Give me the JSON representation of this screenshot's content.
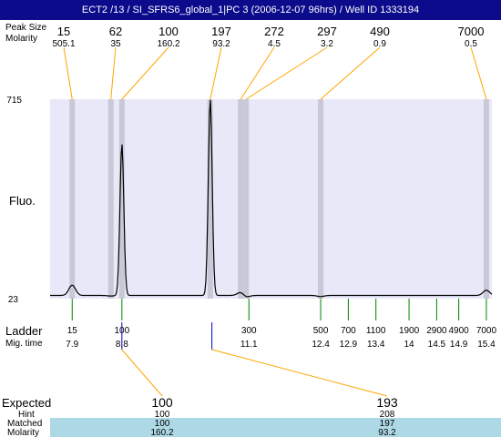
{
  "title": "ECT2 /13 / SI_SFRS6_global_1|PC 3 (2006-12-07 96hrs) / Well ID 1333194",
  "row_labels": {
    "peak_size": "Peak Size",
    "molarity": "Molarity",
    "fluo": "Fluo.",
    "ladder": "Ladder",
    "mig_time": "Mig. time",
    "expected": "Expected",
    "hint": "Hint",
    "matched": "Matched",
    "bottom_molarity": "Molarity"
  },
  "chart_data": {
    "type": "line",
    "ylabel": "Fluo.",
    "yticks": [
      "715",
      "23"
    ],
    "ylim": [
      23,
      715
    ],
    "xlim": [
      7.5,
      15.5
    ],
    "peaks": [
      {
        "size": "15",
        "molarity": "505.1",
        "time": 7.9,
        "height": 70
      },
      {
        "size": "62",
        "molarity": "35",
        "time": 8.6,
        "height": 32
      },
      {
        "size": "100",
        "molarity": "160.2",
        "time": 8.8,
        "height": 560
      },
      {
        "size": "197",
        "molarity": "93.2",
        "time": 10.4,
        "height": 715
      },
      {
        "size": "272",
        "molarity": "4.5",
        "time": 10.95,
        "height": 45
      },
      {
        "size": "297",
        "molarity": "3.2",
        "time": 11.05,
        "height": 28
      },
      {
        "size": "490",
        "molarity": "0.9",
        "time": 12.4,
        "height": 30
      },
      {
        "size": "7000",
        "molarity": "0.5",
        "time": 15.4,
        "height": 52
      }
    ],
    "ladder": [
      {
        "size": "15",
        "time": "7.9",
        "t": 7.9
      },
      {
        "size": "100",
        "time": "8.8",
        "t": 8.8
      },
      {
        "size": "300",
        "time": "11.1",
        "t": 11.1
      },
      {
        "size": "500",
        "time": "12.4",
        "t": 12.4
      },
      {
        "size": "700",
        "time": "12.9",
        "t": 12.9
      },
      {
        "size": "1100",
        "time": "13.4",
        "t": 13.4
      },
      {
        "size": "1900",
        "time": "14",
        "t": 14.0
      },
      {
        "size": "2900",
        "time": "14.5",
        "t": 14.5
      },
      {
        "size": "4900",
        "time": "14.9",
        "t": 14.9
      },
      {
        "size": "7000",
        "time": "15.4",
        "t": 15.4
      }
    ],
    "expected": [
      {
        "expected": "100",
        "hint": "100",
        "matched": "100",
        "molarity": "160.2"
      },
      {
        "expected": "193",
        "hint": "208",
        "matched": "197",
        "molarity": "93.2"
      }
    ]
  },
  "colors": {
    "title_bg": "#0b0b8c",
    "plot_bg": "#e8e8f8",
    "band": "#c8c8d6",
    "connector": "#ffa500",
    "ladder_tick": "#008000",
    "expected_tick": "#0000cc",
    "expected_text": "#e00000",
    "matched_bg": "#add8e6"
  }
}
